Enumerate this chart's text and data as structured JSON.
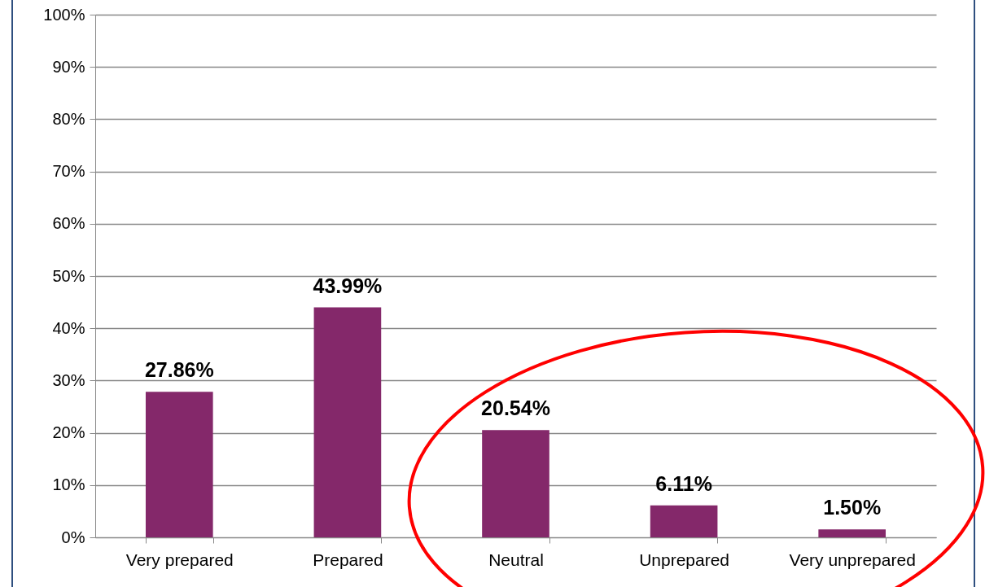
{
  "chart_data": {
    "type": "bar",
    "categories": [
      "Very prepared",
      "Prepared",
      "Neutral",
      "Unprepared",
      "Very unprepared"
    ],
    "values": [
      27.86,
      43.99,
      20.54,
      6.11,
      1.5
    ],
    "value_labels": [
      "27.86%",
      "43.99%",
      "20.54%",
      "6.11%",
      "1.50%"
    ],
    "color": "#84286a",
    "ylim": [
      0,
      100
    ],
    "yticks": [
      {
        "value": 0,
        "label": "0%"
      },
      {
        "value": 10,
        "label": "10%"
      },
      {
        "value": 20,
        "label": "20%"
      },
      {
        "value": 30,
        "label": "30%"
      },
      {
        "value": 40,
        "label": "40%"
      },
      {
        "value": 50,
        "label": "50%"
      },
      {
        "value": 60,
        "label": "60%"
      },
      {
        "value": 70,
        "label": "70%"
      },
      {
        "value": 80,
        "label": "80%"
      },
      {
        "value": 90,
        "label": "90%"
      },
      {
        "value": 100,
        "label": "100%"
      }
    ],
    "grid": "y"
  }
}
